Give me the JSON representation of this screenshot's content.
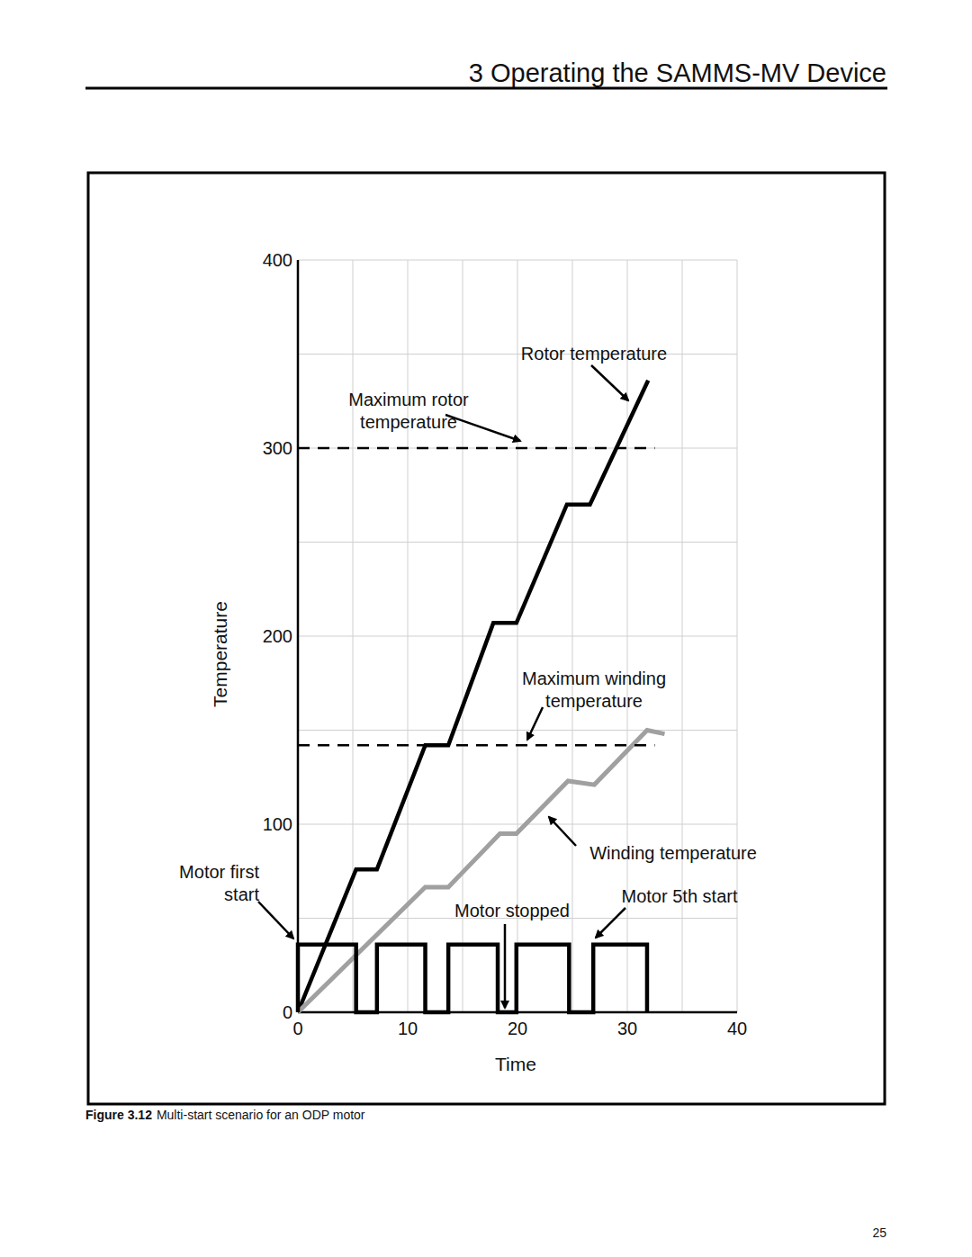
{
  "header": "3 Operating the SAMMS-MV Device",
  "caption": {
    "label": "Figure 3.12",
    "text": "Multi-start scenario for an ODP motor"
  },
  "page_number": "25",
  "chart_data": {
    "type": "line",
    "x_label": "Time",
    "y_label": "Temperature",
    "xlim": [
      0,
      40
    ],
    "ylim": [
      0,
      400
    ],
    "xticks": [
      0,
      10,
      20,
      30,
      40
    ],
    "yticks": [
      0,
      100,
      200,
      300,
      400
    ],
    "minor_ticks": {
      "x": [
        5,
        15,
        25,
        35
      ],
      "y": [
        50,
        150,
        250,
        350
      ]
    },
    "grid": true,
    "series": [
      {
        "color": "#000000",
        "line_style": "solid",
        "x": [
          0,
          5.3,
          7.2,
          11.6,
          13.7,
          17.8,
          19.9,
          24.5,
          26.6,
          31.9
        ],
        "values": [
          0,
          76,
          76,
          142,
          142,
          207,
          207,
          270,
          270,
          336
        ]
      },
      {
        "color": "#a0a0a0",
        "line_style": "solid",
        "x": [
          0,
          11.6,
          13.7,
          18.4,
          19.9,
          24.6,
          27,
          31.8,
          33.4
        ],
        "values": [
          0,
          66.5,
          66.5,
          95,
          95,
          123,
          121,
          150,
          148
        ]
      },
      {
        "color": "#000000",
        "line_style": "solid",
        "x": [
          0,
          0,
          5.3,
          5.3,
          7.2,
          7.2,
          11.6,
          11.6,
          13.7,
          13.7,
          18.2,
          18.2,
          19.9,
          19.9,
          24.7,
          24.7,
          26.9,
          26.9,
          31.8,
          31.8
        ],
        "values": [
          0,
          36,
          36,
          0,
          0,
          36,
          36,
          0,
          0,
          36,
          36,
          0,
          0,
          36,
          36,
          0,
          0,
          36,
          36,
          0
        ]
      },
      {
        "color": "#000000",
        "line_style": "dashed",
        "x": [
          0,
          32.5
        ],
        "values": [
          300,
          300
        ]
      },
      {
        "color": "#000000",
        "line_style": "dashed",
        "x": [
          0,
          32.5
        ],
        "values": [
          142,
          142
        ]
      }
    ],
    "annotations": [
      {
        "lines": [
          "Rotor temperature"
        ]
      },
      {
        "lines": [
          "Maximum rotor",
          "temperature"
        ]
      },
      {
        "lines": [
          "Maximum winding",
          "temperature"
        ]
      },
      {
        "lines": [
          "Winding temperature"
        ]
      },
      {
        "lines": [
          "Motor first",
          "start"
        ]
      },
      {
        "lines": [
          "Motor stopped"
        ]
      },
      {
        "lines": [
          "Motor 5th start"
        ]
      }
    ]
  }
}
